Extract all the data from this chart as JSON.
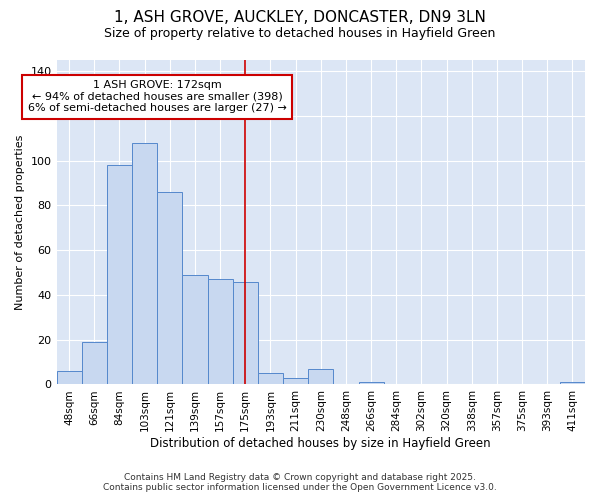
{
  "title": "1, ASH GROVE, AUCKLEY, DONCASTER, DN9 3LN",
  "subtitle": "Size of property relative to detached houses in Hayfield Green",
  "xlabel": "Distribution of detached houses by size in Hayfield Green",
  "ylabel": "Number of detached properties",
  "bar_labels": [
    "48sqm",
    "66sqm",
    "84sqm",
    "103sqm",
    "121sqm",
    "139sqm",
    "157sqm",
    "175sqm",
    "193sqm",
    "211sqm",
    "230sqm",
    "248sqm",
    "266sqm",
    "284sqm",
    "302sqm",
    "320sqm",
    "338sqm",
    "357sqm",
    "375sqm",
    "393sqm",
    "411sqm"
  ],
  "bar_values": [
    6,
    19,
    98,
    108,
    86,
    49,
    47,
    46,
    5,
    3,
    7,
    0,
    1,
    0,
    0,
    0,
    0,
    0,
    0,
    0,
    1
  ],
  "bar_color": "#c8d8f0",
  "bar_edge_color": "#5588cc",
  "plot_bg_color": "#dce6f5",
  "fig_bg_color": "#ffffff",
  "grid_color": "#ffffff",
  "vline_x_index": 7,
  "vline_color": "#cc0000",
  "annotation_text": "1 ASH GROVE: 172sqm\n← 94% of detached houses are smaller (398)\n6% of semi-detached houses are larger (27) →",
  "annotation_box_color": "#ffffff",
  "annotation_edge_color": "#cc0000",
  "ylim": [
    0,
    145
  ],
  "yticks": [
    0,
    20,
    40,
    60,
    80,
    100,
    120,
    140
  ],
  "footer_line1": "Contains HM Land Registry data © Crown copyright and database right 2025.",
  "footer_line2": "Contains public sector information licensed under the Open Government Licence v3.0."
}
